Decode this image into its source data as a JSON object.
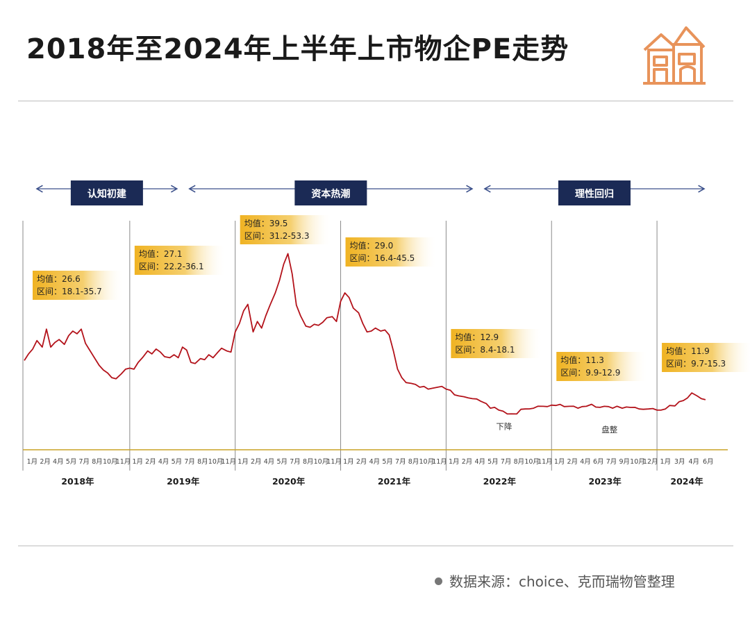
{
  "header": {
    "title": "2018年至2024年上半年上市物企PE走势",
    "logo_icon": "house-icon"
  },
  "source": {
    "text": "数据来源：choice、克而瑞物管整理"
  },
  "colors": {
    "line": "#b3121a",
    "phase_box": "#1b2a55",
    "callout": "#f0b323",
    "baseline": "#c9a227",
    "logo": "#e8935a"
  },
  "chart_data": {
    "type": "line",
    "title": "2018年至2024年上半年上市物企PE走势",
    "xlabel": "",
    "ylabel": "",
    "x_range": [
      2018.0,
      2024.5
    ],
    "ylim": [
      0,
      55
    ],
    "grid": false,
    "years": [
      {
        "label": "2018年",
        "months": [
          "1月",
          "2月",
          "4月",
          "5月",
          "7月",
          "8月",
          "10月",
          "11月"
        ]
      },
      {
        "label": "2019年",
        "months": [
          "1月",
          "2月",
          "4月",
          "5月",
          "7月",
          "8月",
          "10月",
          "11月"
        ]
      },
      {
        "label": "2020年",
        "months": [
          "1月",
          "2月",
          "4月",
          "5月",
          "7月",
          "8月",
          "10月",
          "11月"
        ]
      },
      {
        "label": "2021年",
        "months": [
          "1月",
          "2月",
          "4月",
          "5月",
          "7月",
          "8月",
          "10月",
          "11月"
        ]
      },
      {
        "label": "2022年",
        "months": [
          "1月",
          "2月",
          "4月",
          "5月",
          "7月",
          "8月",
          "10月",
          "11月"
        ]
      },
      {
        "label": "2023年",
        "months": [
          "1月",
          "2月",
          "4月",
          "6月",
          "7月",
          "9月",
          "10月",
          "12月"
        ]
      },
      {
        "label": "2024年",
        "months": [
          "1月",
          "3月",
          "4月",
          "6月"
        ]
      }
    ],
    "phases": [
      {
        "label": "认知初建",
        "x_start": 2018.0,
        "x_end": 2019.5
      },
      {
        "label": "资本热潮",
        "x_start": 2019.5,
        "x_end": 2022.3
      },
      {
        "label": "理性回归",
        "x_start": 2022.3,
        "x_end": 2024.5
      }
    ],
    "annotations": [
      {
        "mean_label": "均值：",
        "mean": "26.6",
        "range_label": "区间：",
        "range": "18.1-35.7"
      },
      {
        "mean_label": "均值：",
        "mean": "27.1",
        "range_label": "区间：",
        "range": "22.2-36.1"
      },
      {
        "mean_label": "均值：",
        "mean": "39.5",
        "range_label": "区间：",
        "range": "31.2-53.3"
      },
      {
        "mean_label": "均值：",
        "mean": "29.0",
        "range_label": "区间：",
        "range": "16.4-45.5"
      },
      {
        "mean_label": "均值：",
        "mean": "12.9",
        "range_label": "区间：",
        "range": "8.4-18.1"
      },
      {
        "mean_label": "均值：",
        "mean": "11.3",
        "range_label": "区间：",
        "range": "9.9-12.9"
      },
      {
        "mean_label": "均值：",
        "mean": "11.9",
        "range_label": "区间：",
        "range": "9.7-15.3"
      }
    ],
    "notes": [
      {
        "text": "下降",
        "x": 2022.55,
        "y": 8.6
      },
      {
        "text": "盘整",
        "x": 2023.55,
        "y": 7.8
      }
    ],
    "series": [
      {
        "x": [
          2018.0,
          2018.04,
          2018.08,
          2018.12,
          2018.17,
          2018.21,
          2018.25,
          2018.29,
          2018.33,
          2018.38,
          2018.42,
          2018.46,
          2018.5,
          2018.54,
          2018.58,
          2018.62,
          2018.67,
          2018.71,
          2018.75,
          2018.79,
          2018.83,
          2018.87,
          2018.92,
          2018.96,
          2019.0,
          2019.04,
          2019.08,
          2019.12,
          2019.17,
          2019.21,
          2019.25,
          2019.29,
          2019.33,
          2019.38,
          2019.42,
          2019.46,
          2019.5,
          2019.54,
          2019.58,
          2019.62,
          2019.67,
          2019.71,
          2019.75,
          2019.79,
          2019.83,
          2019.87,
          2019.92,
          2019.96,
          2020.0,
          2020.04,
          2020.08,
          2020.12,
          2020.17,
          2020.21,
          2020.25,
          2020.29,
          2020.33,
          2020.38,
          2020.42,
          2020.46,
          2020.5,
          2020.54,
          2020.58,
          2020.62,
          2020.67,
          2020.71,
          2020.75,
          2020.79,
          2020.83,
          2020.87,
          2020.92,
          2020.96,
          2021.0,
          2021.04,
          2021.08,
          2021.12,
          2021.17,
          2021.21,
          2021.25,
          2021.29,
          2021.33,
          2021.38,
          2021.42,
          2021.46,
          2021.5,
          2021.54,
          2021.58,
          2021.62,
          2021.67,
          2021.71,
          2021.75,
          2021.79,
          2021.83,
          2021.87,
          2021.92,
          2021.96,
          2022.0,
          2022.04,
          2022.08,
          2022.12,
          2022.17,
          2022.21,
          2022.25,
          2022.29,
          2022.33,
          2022.38,
          2022.42,
          2022.46,
          2022.5,
          2022.54,
          2022.58,
          2022.62,
          2022.67,
          2022.71,
          2022.75,
          2022.79,
          2022.83,
          2022.87,
          2022.92,
          2022.96,
          2023.0,
          2023.04,
          2023.08,
          2023.12,
          2023.17,
          2023.21,
          2023.25,
          2023.29,
          2023.33,
          2023.38,
          2023.42,
          2023.46,
          2023.5,
          2023.54,
          2023.58,
          2023.62,
          2023.67,
          2023.71,
          2023.75,
          2023.79,
          2023.83,
          2023.87,
          2023.92,
          2023.96,
          2024.0,
          2024.04,
          2024.08,
          2024.12,
          2024.17,
          2024.21,
          2024.25,
          2024.29,
          2024.33,
          2024.38,
          2024.42,
          2024.46
        ],
        "y": [
          23.5,
          25.0,
          26.5,
          28.5,
          27.0,
          31.5,
          27.0,
          28.0,
          29.0,
          27.5,
          30.0,
          31.0,
          30.5,
          31.5,
          28.0,
          26.0,
          24.0,
          22.0,
          21.0,
          20.0,
          19.0,
          18.5,
          20.0,
          21.0,
          21.5,
          21.0,
          23.0,
          24.0,
          26.0,
          25.0,
          26.5,
          25.5,
          24.5,
          24.0,
          25.0,
          24.0,
          27.0,
          26.0,
          23.0,
          22.5,
          24.0,
          23.5,
          25.0,
          24.0,
          25.5,
          26.5,
          26.0,
          25.5,
          31.0,
          33.0,
          36.5,
          38.0,
          31.0,
          33.5,
          32.0,
          35.0,
          38.0,
          41.0,
          44.5,
          48.5,
          51.5,
          46.0,
          38.0,
          35.0,
          32.5,
          32.0,
          33.0,
          32.5,
          33.5,
          34.5,
          35.0,
          33.5,
          39.0,
          41.0,
          40.0,
          37.0,
          36.0,
          33.0,
          31.0,
          31.0,
          32.0,
          31.0,
          31.5,
          30.0,
          26.0,
          21.0,
          19.0,
          17.5,
          17.5,
          17.0,
          16.5,
          16.5,
          16.0,
          16.0,
          16.5,
          16.5,
          16.0,
          15.5,
          14.5,
          14.0,
          14.0,
          13.5,
          13.5,
          13.2,
          12.8,
          12.0,
          11.0,
          11.0,
          10.5,
          10.0,
          9.5,
          9.3,
          9.5,
          10.5,
          10.8,
          10.6,
          11.0,
          11.3,
          11.5,
          11.2,
          11.8,
          11.5,
          12.0,
          11.2,
          11.5,
          11.3,
          11.0,
          11.2,
          11.5,
          11.8,
          11.3,
          11.0,
          11.5,
          11.2,
          11.0,
          11.3,
          11.0,
          11.1,
          11.2,
          11.0,
          10.8,
          10.5,
          10.8,
          10.7,
          10.5,
          10.3,
          10.8,
          11.5,
          11.6,
          12.5,
          13.0,
          13.5,
          15.0,
          14.0,
          13.5,
          13.0
        ]
      }
    ]
  }
}
